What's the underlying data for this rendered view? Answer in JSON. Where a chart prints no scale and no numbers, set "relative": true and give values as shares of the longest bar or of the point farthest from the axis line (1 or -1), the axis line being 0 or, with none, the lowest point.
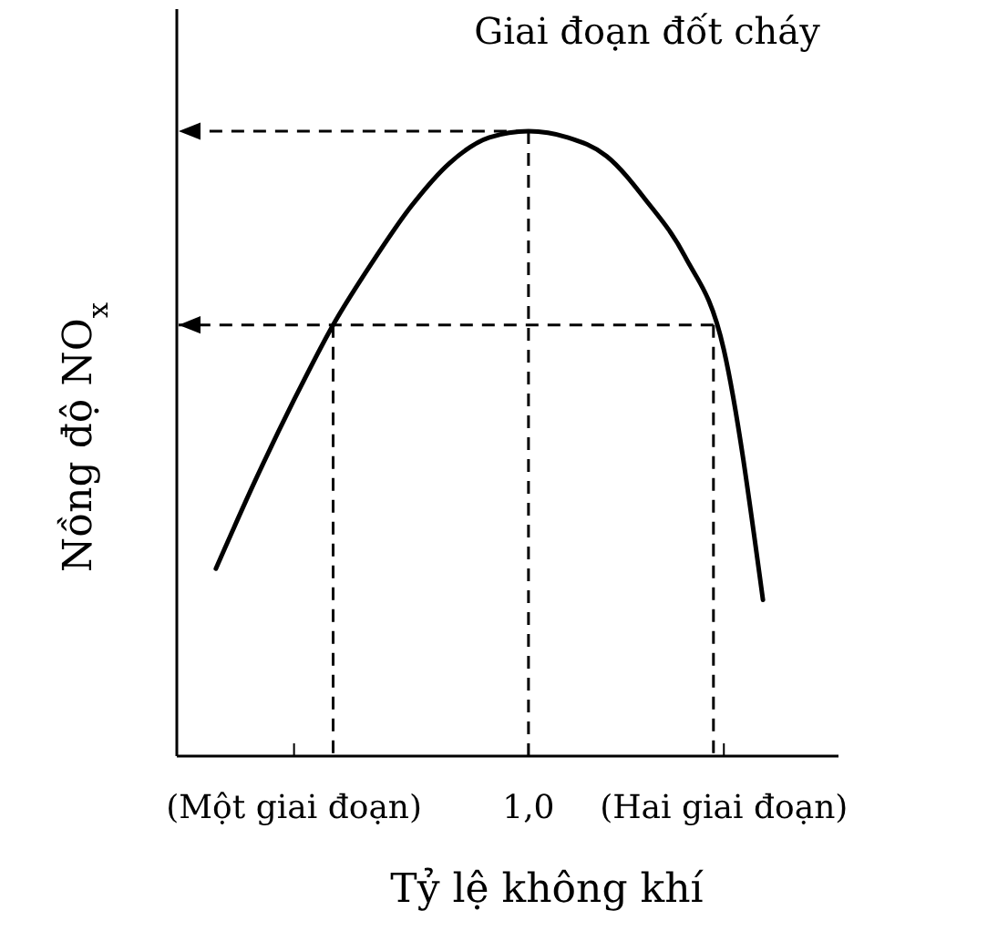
{
  "chart_data": {
    "type": "line",
    "title": "Giai đoạn đốt cháy",
    "xlabel": "Tỷ lệ không khí",
    "ylabel": "Nồng độ NO$_{x}$",
    "relative": true,
    "categories": [
      null,
      null,
      null,
      "(Một giai đoạn)",
      null,
      null,
      null,
      null,
      null,
      "1,0",
      null,
      null,
      null,
      null,
      "(Hai giai đoạn)",
      null,
      null
    ],
    "series": [
      {
        "color": "#000000",
        "values": [
          null,
          0.3,
          0.44,
          0.57,
          0.69,
          0.79,
          0.88,
          0.95,
          0.99,
          1.0,
          0.99,
          0.96,
          0.89,
          0.8,
          0.65,
          0.25,
          null
        ]
      }
    ],
    "ref_lines": [
      {
        "axis": "y",
        "value": 1.0,
        "line_style": "dashed",
        "color": "#000000"
      },
      {
        "axis": "y",
        "value": 0.69,
        "line_style": "dashed",
        "color": "#000000"
      }
    ],
    "marker": "none",
    "line_style": "solid"
  }
}
